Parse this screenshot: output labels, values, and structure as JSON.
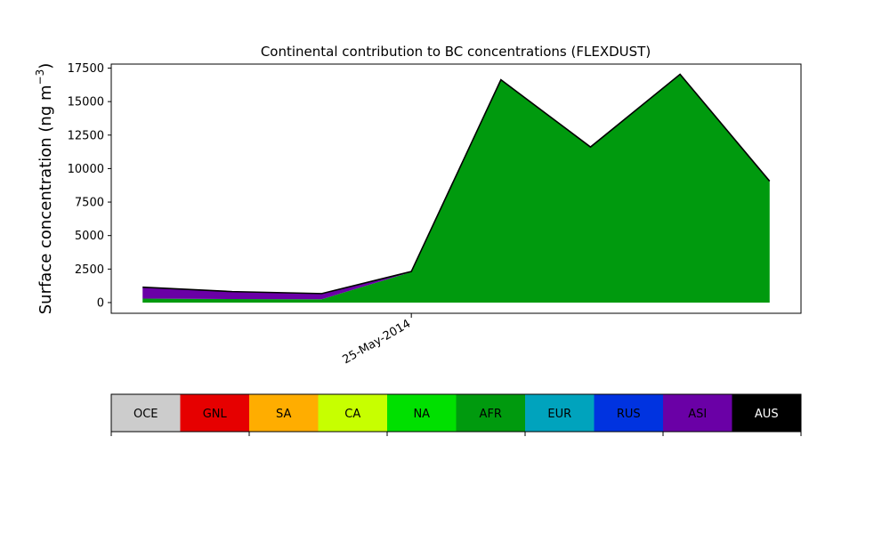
{
  "chart_data": {
    "type": "area",
    "title": "Continental contribution to BC concentrations (FLEXDUST)",
    "ylabel_main": "Surface concentration (ng m",
    "ylabel_exp": "−3",
    "ylabel_close": ")",
    "ylim": [
      -800,
      17800
    ],
    "yticks": [
      0,
      2500,
      5000,
      7500,
      10000,
      12500,
      15000,
      17500
    ],
    "xlim": [
      -0.35,
      7.35
    ],
    "x": [
      0,
      1,
      2,
      3,
      4,
      5,
      6,
      7
    ],
    "xticks": [
      {
        "x": 3,
        "label": "25-May-2014"
      }
    ],
    "stack_order": [
      "OCE",
      "GNL",
      "SA",
      "CA",
      "NA",
      "AFR",
      "EUR",
      "RUS",
      "ASI",
      "AUS"
    ],
    "series": [
      {
        "name": "AFR",
        "color": "#009a0e",
        "values": [
          300,
          260,
          250,
          2280,
          16600,
          11580,
          17000,
          9000
        ]
      },
      {
        "name": "ASI",
        "color": "#6a00a6",
        "values": [
          850,
          560,
          420,
          40,
          30,
          30,
          40,
          60
        ]
      }
    ],
    "legend": [
      {
        "name": "OCE",
        "color": "#cccccc",
        "text_color": "#000000"
      },
      {
        "name": "GNL",
        "color": "#e60000",
        "text_color": "#000000"
      },
      {
        "name": "SA",
        "color": "#ffad00",
        "text_color": "#000000"
      },
      {
        "name": "CA",
        "color": "#c7ff00",
        "text_color": "#000000"
      },
      {
        "name": "NA",
        "color": "#00e000",
        "text_color": "#000000"
      },
      {
        "name": "AFR",
        "color": "#009a0e",
        "text_color": "#000000"
      },
      {
        "name": "EUR",
        "color": "#00a3bd",
        "text_color": "#000000"
      },
      {
        "name": "RUS",
        "color": "#0033e0",
        "text_color": "#000000"
      },
      {
        "name": "ASI",
        "color": "#6a00a6",
        "text_color": "#000000"
      },
      {
        "name": "AUS",
        "color": "#000000",
        "text_color": "#ffffff"
      }
    ],
    "grid": false,
    "legend_placement": "bottom colorbar"
  }
}
